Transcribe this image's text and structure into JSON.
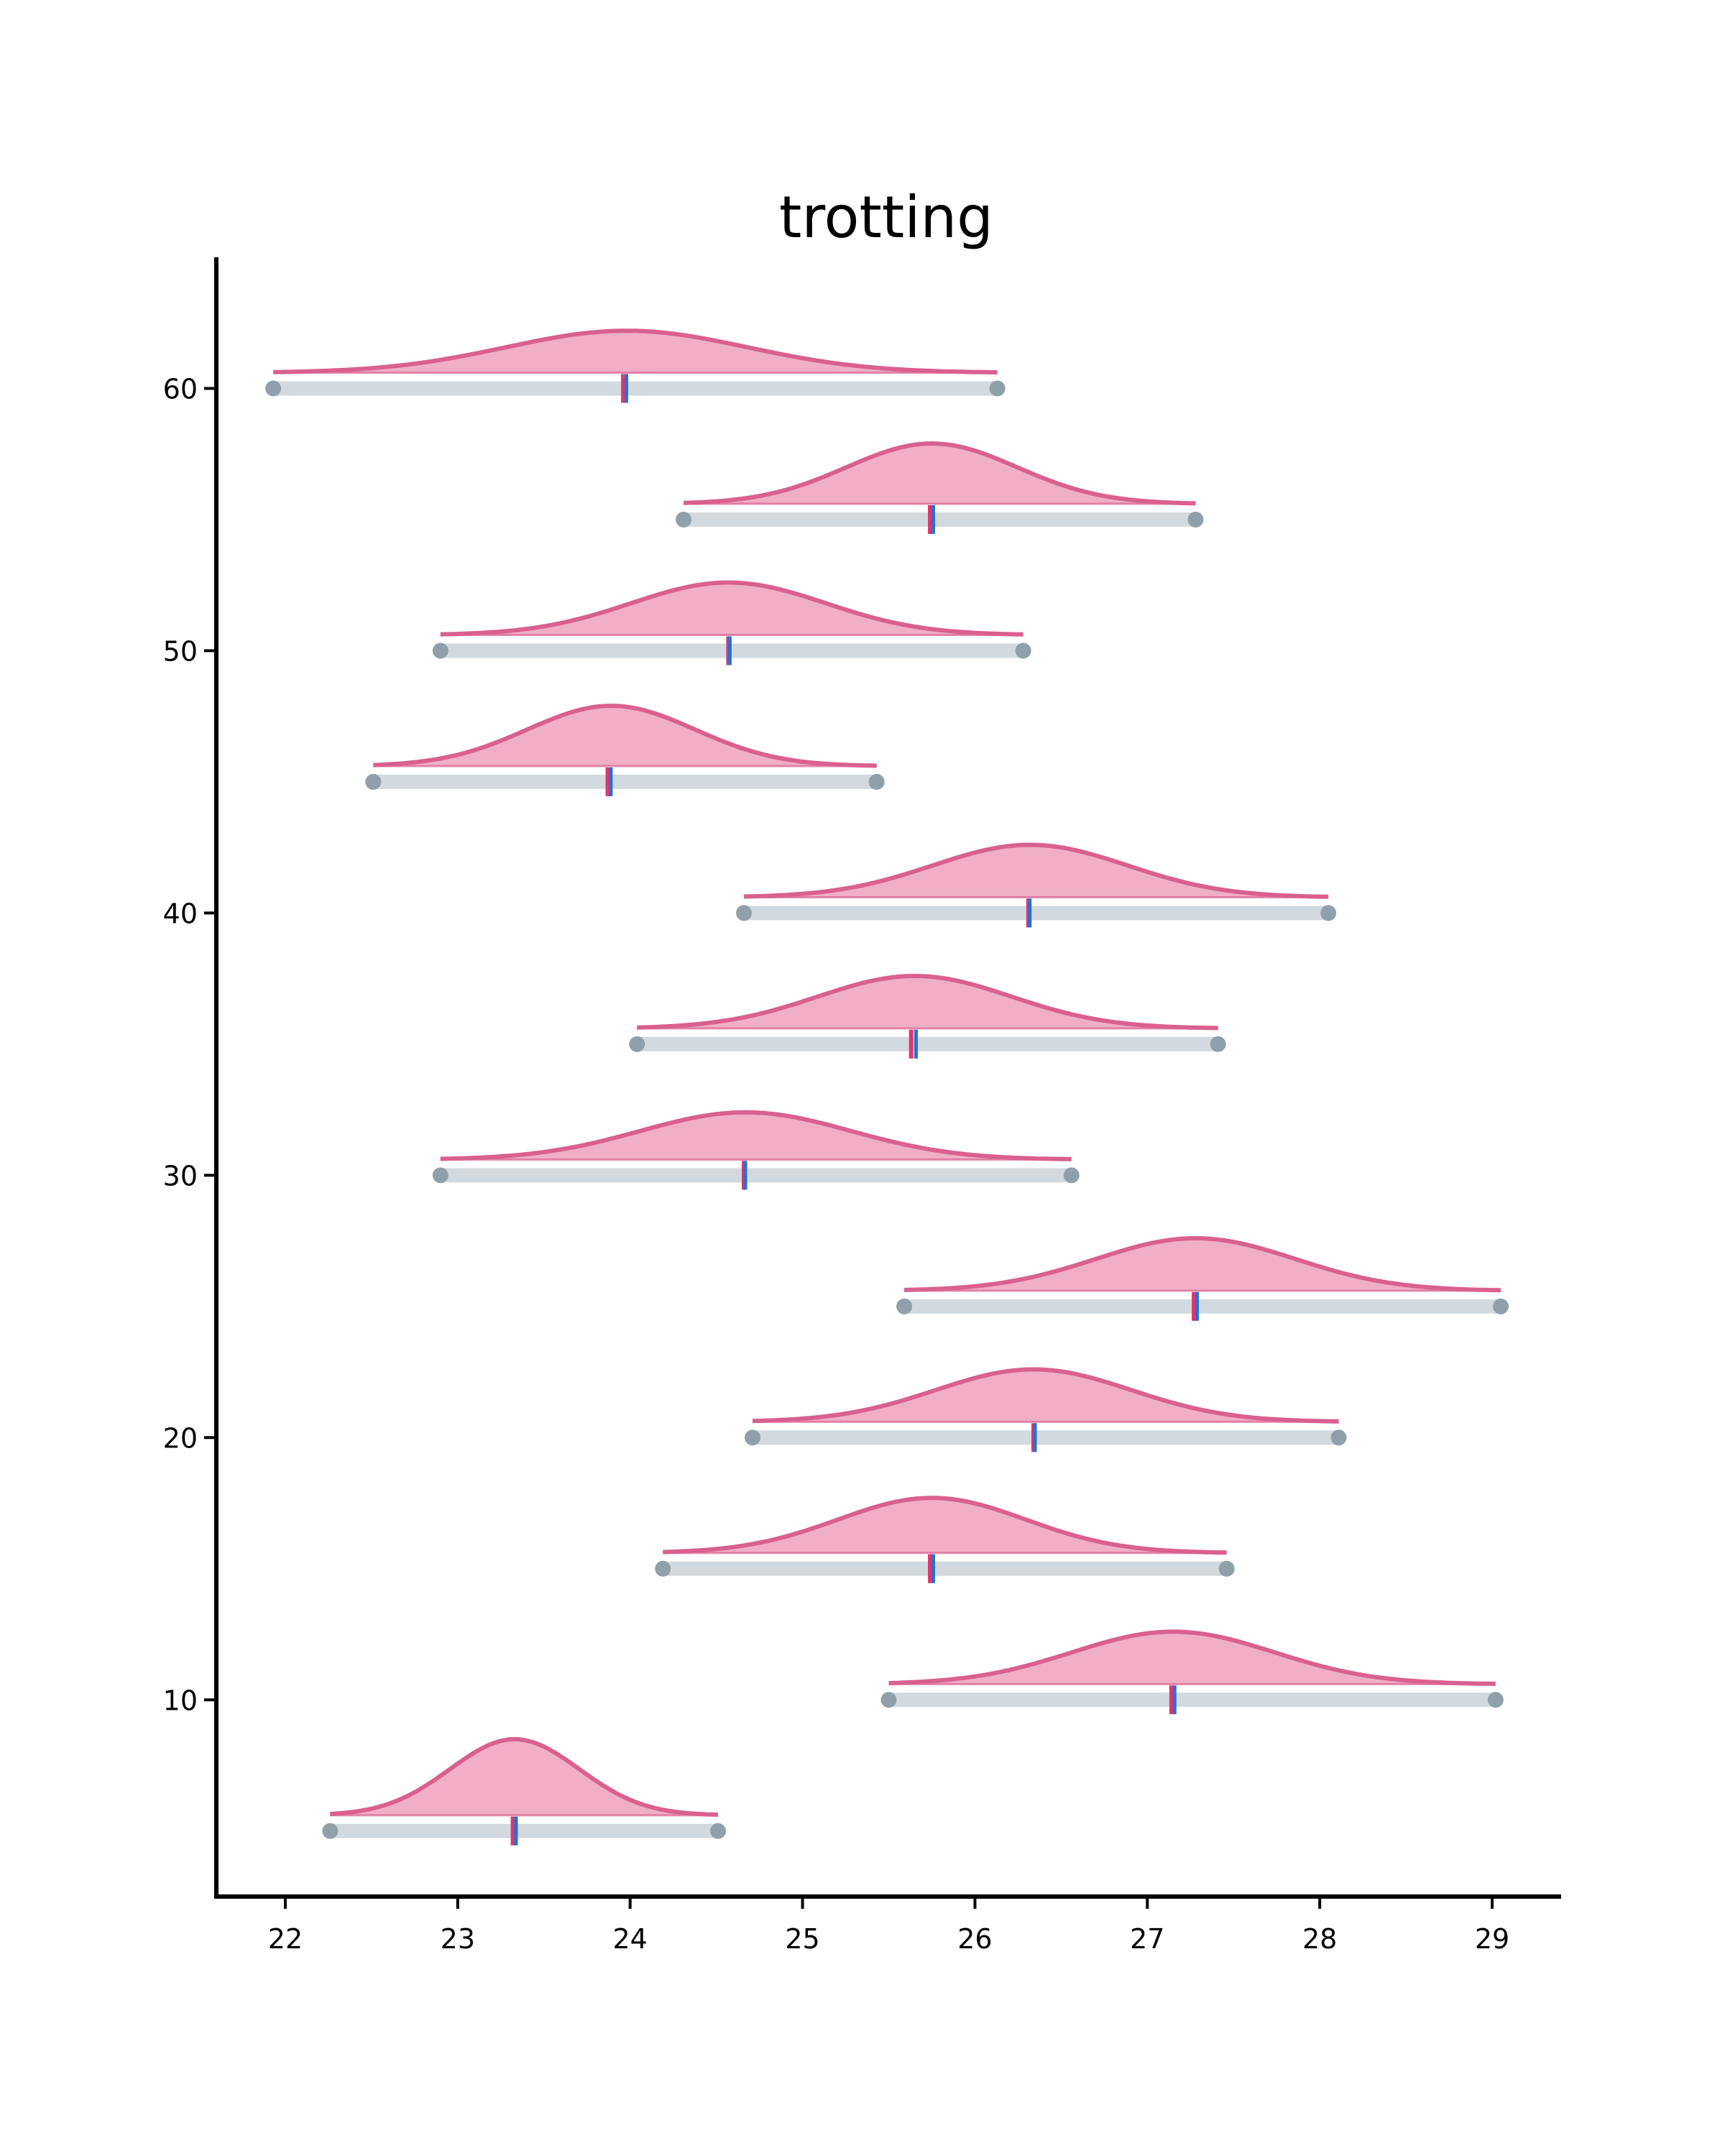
{
  "chart_data": {
    "type": "ridgeline",
    "title": "trotting",
    "xlabel": "",
    "ylabel": "",
    "xlim": [
      21.6,
      29.4
    ],
    "ylim": [
      2.5,
      65
    ],
    "xticks": [
      22,
      23,
      24,
      25,
      26,
      27,
      28,
      29
    ],
    "yticks": [
      10,
      20,
      30,
      40,
      50,
      60
    ],
    "grid": false,
    "colors": {
      "fill": "#f0afc6",
      "curve": "#d9608f",
      "range_bar": "#d3dadf",
      "endpoint": "#8fa0aa",
      "median": "#e0356e",
      "mean": "#2a6fd1"
    },
    "series": [
      {
        "y": 60,
        "min": 21.93,
        "max": 26.13,
        "median": 23.96,
        "mean": 23.97,
        "peak": 23.98,
        "density": 1.6
      },
      {
        "y": 55,
        "min": 24.31,
        "max": 27.28,
        "median": 25.74,
        "mean": 25.75,
        "peak": 25.75,
        "density": 2.3
      },
      {
        "y": 50,
        "min": 22.9,
        "max": 26.28,
        "median": 24.57,
        "mean": 24.57,
        "peak": 24.57,
        "density": 2.0
      },
      {
        "y": 45,
        "min": 22.51,
        "max": 25.43,
        "median": 23.87,
        "mean": 23.88,
        "peak": 23.89,
        "density": 2.3
      },
      {
        "y": 40,
        "min": 24.66,
        "max": 28.05,
        "median": 26.31,
        "mean": 26.31,
        "peak": 26.32,
        "density": 2.0
      },
      {
        "y": 35,
        "min": 24.04,
        "max": 27.41,
        "median": 25.63,
        "mean": 25.65,
        "peak": 25.65,
        "density": 2.0
      },
      {
        "y": 30,
        "min": 22.9,
        "max": 26.56,
        "median": 24.66,
        "mean": 24.66,
        "peak": 24.67,
        "density": 1.8
      },
      {
        "y": 25,
        "min": 25.59,
        "max": 29.05,
        "median": 27.27,
        "mean": 27.28,
        "peak": 27.28,
        "density": 2.0
      },
      {
        "y": 20,
        "min": 24.71,
        "max": 28.11,
        "median": 26.34,
        "mean": 26.34,
        "peak": 26.34,
        "density": 2.0
      },
      {
        "y": 15,
        "min": 24.19,
        "max": 27.46,
        "median": 25.74,
        "mean": 25.75,
        "peak": 25.75,
        "density": 2.1
      },
      {
        "y": 10,
        "min": 25.5,
        "max": 29.02,
        "median": 27.14,
        "mean": 27.15,
        "peak": 27.15,
        "density": 2.0
      },
      {
        "y": 5,
        "min": 22.26,
        "max": 24.51,
        "median": 23.32,
        "mean": 23.33,
        "peak": 23.33,
        "density": 2.9
      }
    ]
  }
}
